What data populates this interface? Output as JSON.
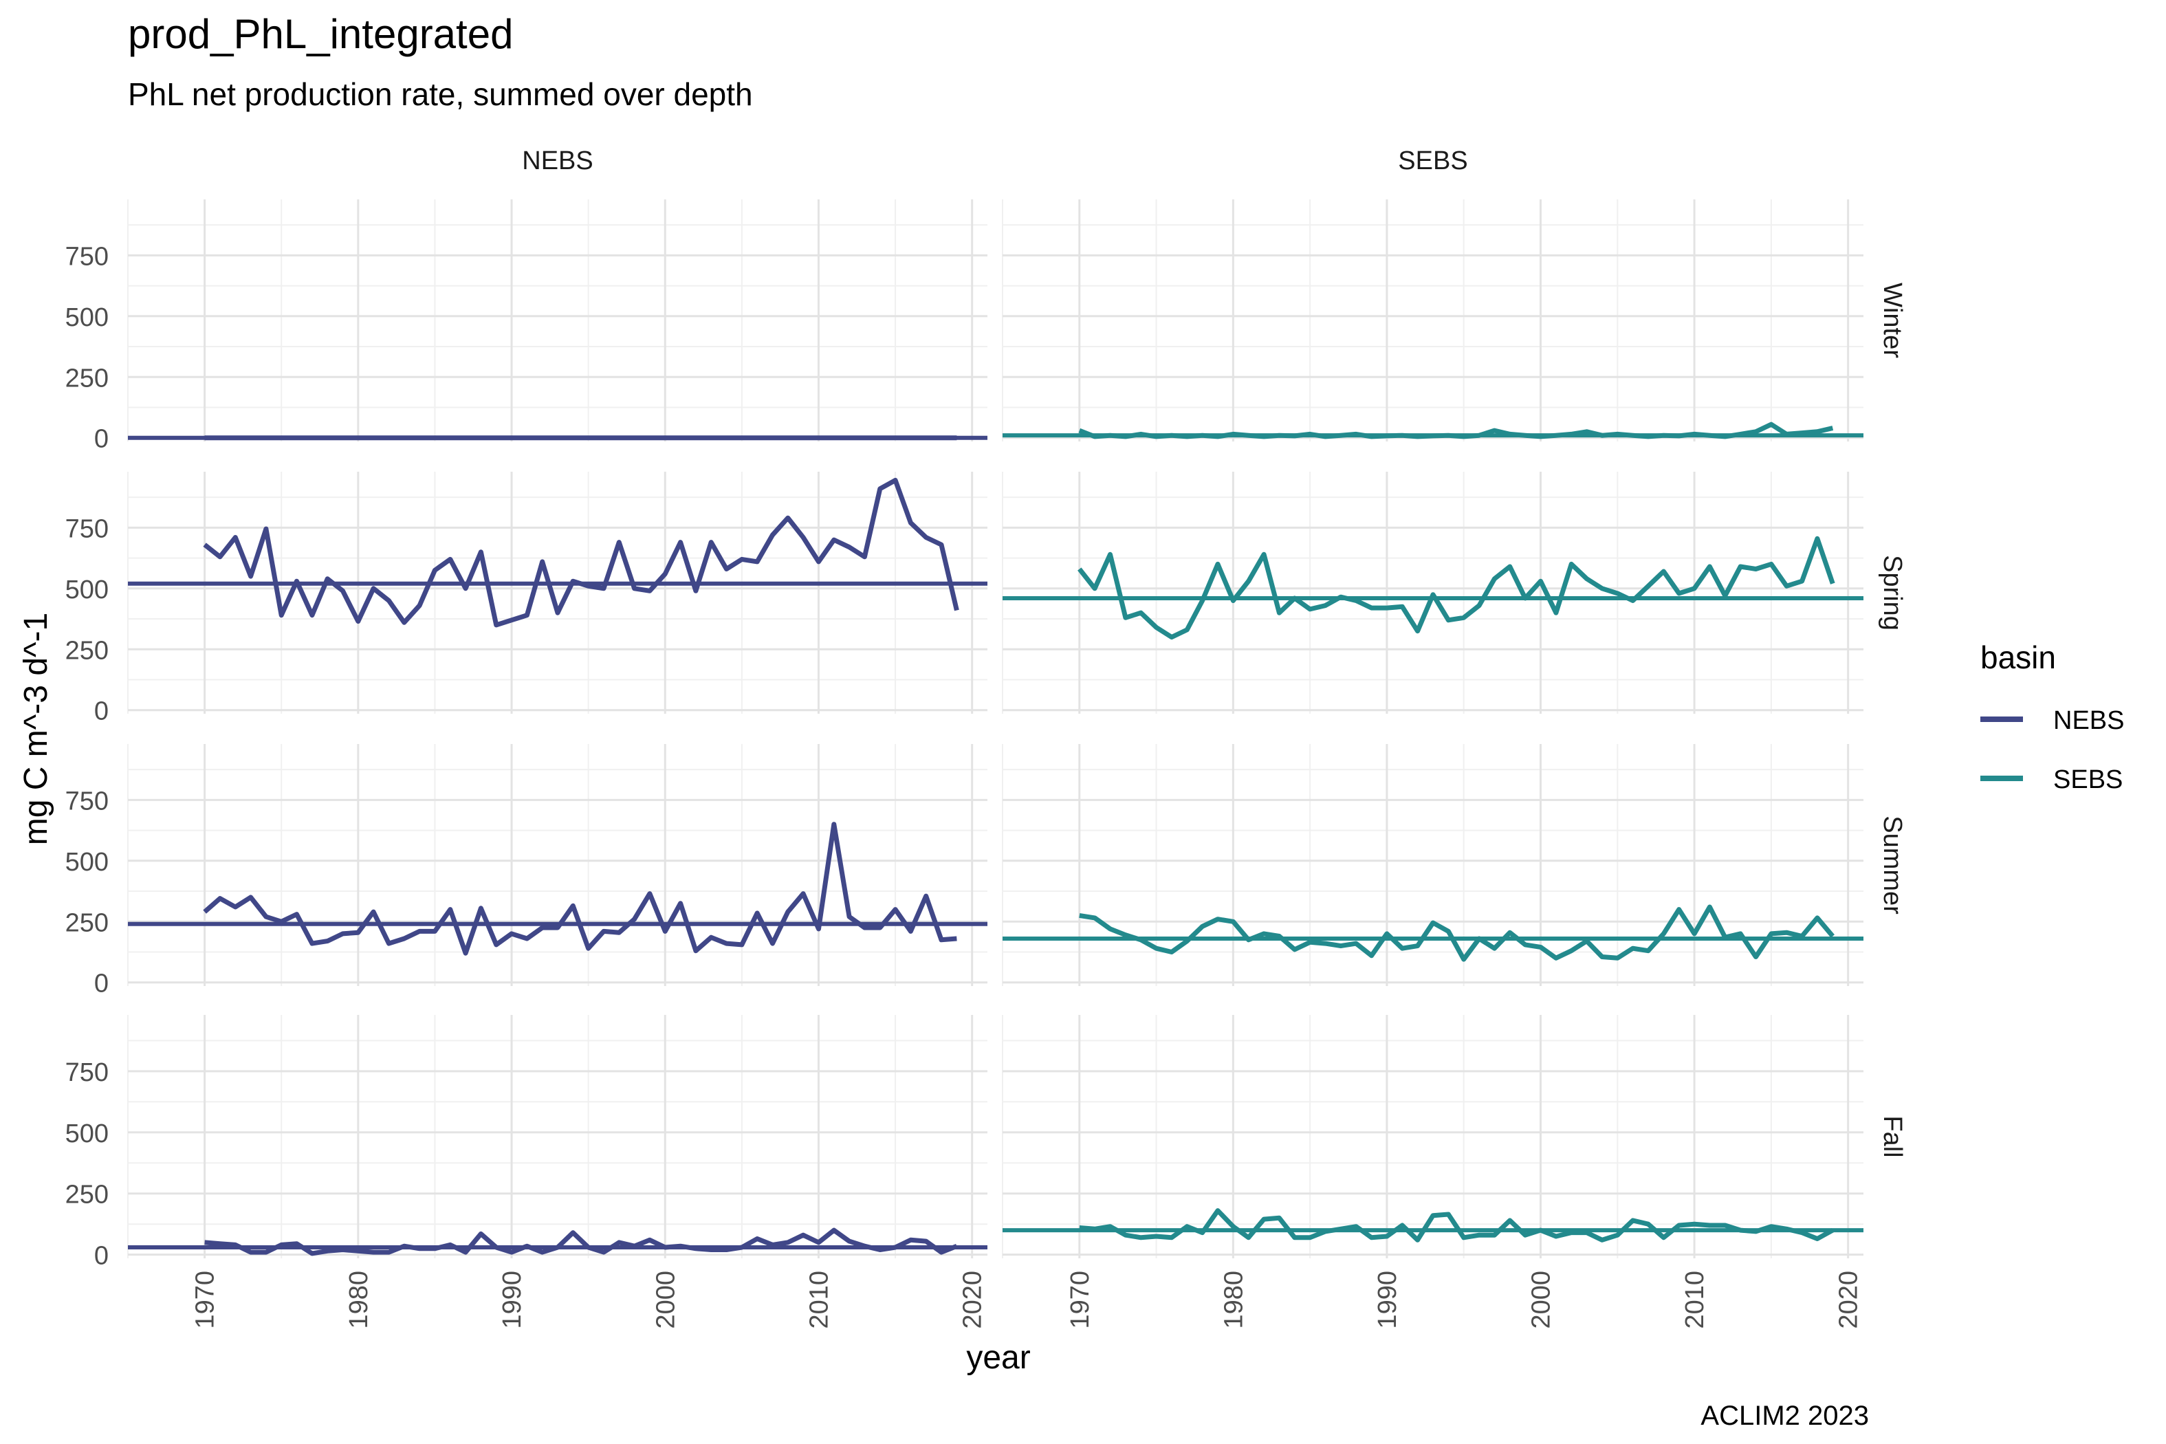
{
  "chart_data": {
    "type": "line",
    "title": "prod_PhL_integrated",
    "subtitle": "PhL net production rate, summed over depth",
    "xlabel": "year",
    "ylabel": "mg C m^-3 d^-1",
    "caption": "ACLIM2 2023",
    "xlim": [
      1965,
      2021
    ],
    "ylim": [
      -15,
      980
    ],
    "x_ticks": [
      1970,
      1980,
      1990,
      2000,
      2010,
      2020
    ],
    "y_ticks": [
      0,
      250,
      500,
      750
    ],
    "grid": true,
    "legend": {
      "title": "basin",
      "position": "right",
      "entries": [
        {
          "label": "NEBS",
          "color": "#404788"
        },
        {
          "label": "SEBS",
          "color": "#238A8D"
        }
      ]
    },
    "facet_columns": [
      "NEBS",
      "SEBS"
    ],
    "facet_rows": [
      "Winter",
      "Spring",
      "Summer",
      "Fall"
    ],
    "years": [
      1970,
      1971,
      1972,
      1973,
      1974,
      1975,
      1976,
      1977,
      1978,
      1979,
      1980,
      1981,
      1982,
      1983,
      1984,
      1985,
      1986,
      1987,
      1988,
      1989,
      1990,
      1991,
      1992,
      1993,
      1994,
      1995,
      1996,
      1997,
      1998,
      1999,
      2000,
      2001,
      2002,
      2003,
      2004,
      2005,
      2006,
      2007,
      2008,
      2009,
      2010,
      2011,
      2012,
      2013,
      2014,
      2015,
      2016,
      2017,
      2018,
      2019
    ],
    "panels": [
      {
        "basin": "NEBS",
        "season": "Winter",
        "mean": 0,
        "values": [
          0,
          0,
          0,
          0,
          0,
          0,
          0,
          0,
          0,
          0,
          0,
          0,
          0,
          0,
          0,
          0,
          0,
          0,
          0,
          0,
          0,
          0,
          0,
          0,
          0,
          0,
          0,
          0,
          0,
          0,
          0,
          0,
          0,
          0,
          0,
          0,
          0,
          0,
          0,
          0,
          0,
          0,
          0,
          0,
          0,
          0,
          0,
          0,
          0,
          0
        ]
      },
      {
        "basin": "SEBS",
        "season": "Winter",
        "mean": 10,
        "values": [
          30,
          5,
          10,
          5,
          15,
          5,
          10,
          5,
          10,
          5,
          15,
          10,
          5,
          10,
          8,
          15,
          5,
          10,
          15,
          5,
          8,
          10,
          5,
          8,
          10,
          5,
          10,
          30,
          15,
          10,
          5,
          10,
          15,
          25,
          10,
          15,
          10,
          5,
          10,
          8,
          15,
          10,
          5,
          15,
          25,
          55,
          15,
          20,
          25,
          40
        ]
      },
      {
        "basin": "NEBS",
        "season": "Spring",
        "mean": 520,
        "values": [
          680,
          630,
          710,
          550,
          745,
          390,
          530,
          390,
          540,
          490,
          365,
          500,
          450,
          360,
          430,
          575,
          620,
          500,
          650,
          350,
          370,
          390,
          610,
          400,
          530,
          510,
          500,
          690,
          500,
          490,
          560,
          690,
          490,
          690,
          580,
          620,
          610,
          720,
          790,
          710,
          610,
          700,
          670,
          630,
          910,
          945,
          770,
          710,
          680,
          410
        ]
      },
      {
        "basin": "SEBS",
        "season": "Spring",
        "mean": 460,
        "values": [
          580,
          500,
          640,
          380,
          400,
          340,
          300,
          330,
          450,
          600,
          450,
          530,
          640,
          400,
          460,
          415,
          430,
          465,
          450,
          420,
          420,
          425,
          325,
          475,
          370,
          380,
          430,
          540,
          590,
          460,
          530,
          400,
          600,
          540,
          500,
          480,
          450,
          510,
          570,
          480,
          500,
          590,
          470,
          590,
          580,
          600,
          510,
          530,
          705,
          520
        ]
      },
      {
        "basin": "NEBS",
        "season": "Summer",
        "mean": 240,
        "values": [
          290,
          345,
          310,
          350,
          270,
          250,
          280,
          160,
          170,
          200,
          205,
          290,
          160,
          180,
          210,
          210,
          300,
          120,
          305,
          155,
          200,
          180,
          225,
          225,
          315,
          140,
          210,
          205,
          260,
          365,
          210,
          325,
          130,
          185,
          160,
          155,
          285,
          160,
          290,
          365,
          220,
          650,
          270,
          225,
          225,
          300,
          210,
          355,
          175,
          180
        ]
      },
      {
        "basin": "SEBS",
        "season": "Summer",
        "mean": 180,
        "values": [
          275,
          265,
          220,
          195,
          175,
          140,
          125,
          170,
          230,
          260,
          250,
          175,
          200,
          190,
          135,
          165,
          160,
          150,
          160,
          110,
          200,
          140,
          150,
          245,
          210,
          95,
          180,
          140,
          205,
          155,
          145,
          100,
          130,
          170,
          105,
          100,
          140,
          130,
          200,
          300,
          200,
          310,
          185,
          200,
          105,
          200,
          205,
          190,
          265,
          190
        ]
      },
      {
        "basin": "NEBS",
        "season": "Fall",
        "mean": 30,
        "values": [
          50,
          45,
          40,
          10,
          10,
          40,
          45,
          5,
          15,
          20,
          15,
          10,
          10,
          35,
          25,
          25,
          40,
          10,
          85,
          30,
          10,
          35,
          10,
          30,
          90,
          30,
          10,
          50,
          35,
          60,
          30,
          35,
          25,
          20,
          20,
          30,
          65,
          40,
          50,
          80,
          50,
          100,
          55,
          35,
          20,
          30,
          60,
          55,
          10,
          35
        ]
      },
      {
        "basin": "SEBS",
        "season": "Fall",
        "mean": 100,
        "values": [
          110,
          105,
          115,
          80,
          70,
          75,
          70,
          115,
          90,
          180,
          115,
          70,
          145,
          150,
          70,
          70,
          95,
          105,
          115,
          70,
          75,
          120,
          60,
          160,
          165,
          70,
          80,
          80,
          140,
          80,
          100,
          75,
          90,
          90,
          60,
          80,
          140,
          125,
          70,
          120,
          125,
          120,
          120,
          100,
          95,
          115,
          105,
          90,
          65,
          100
        ]
      }
    ]
  }
}
